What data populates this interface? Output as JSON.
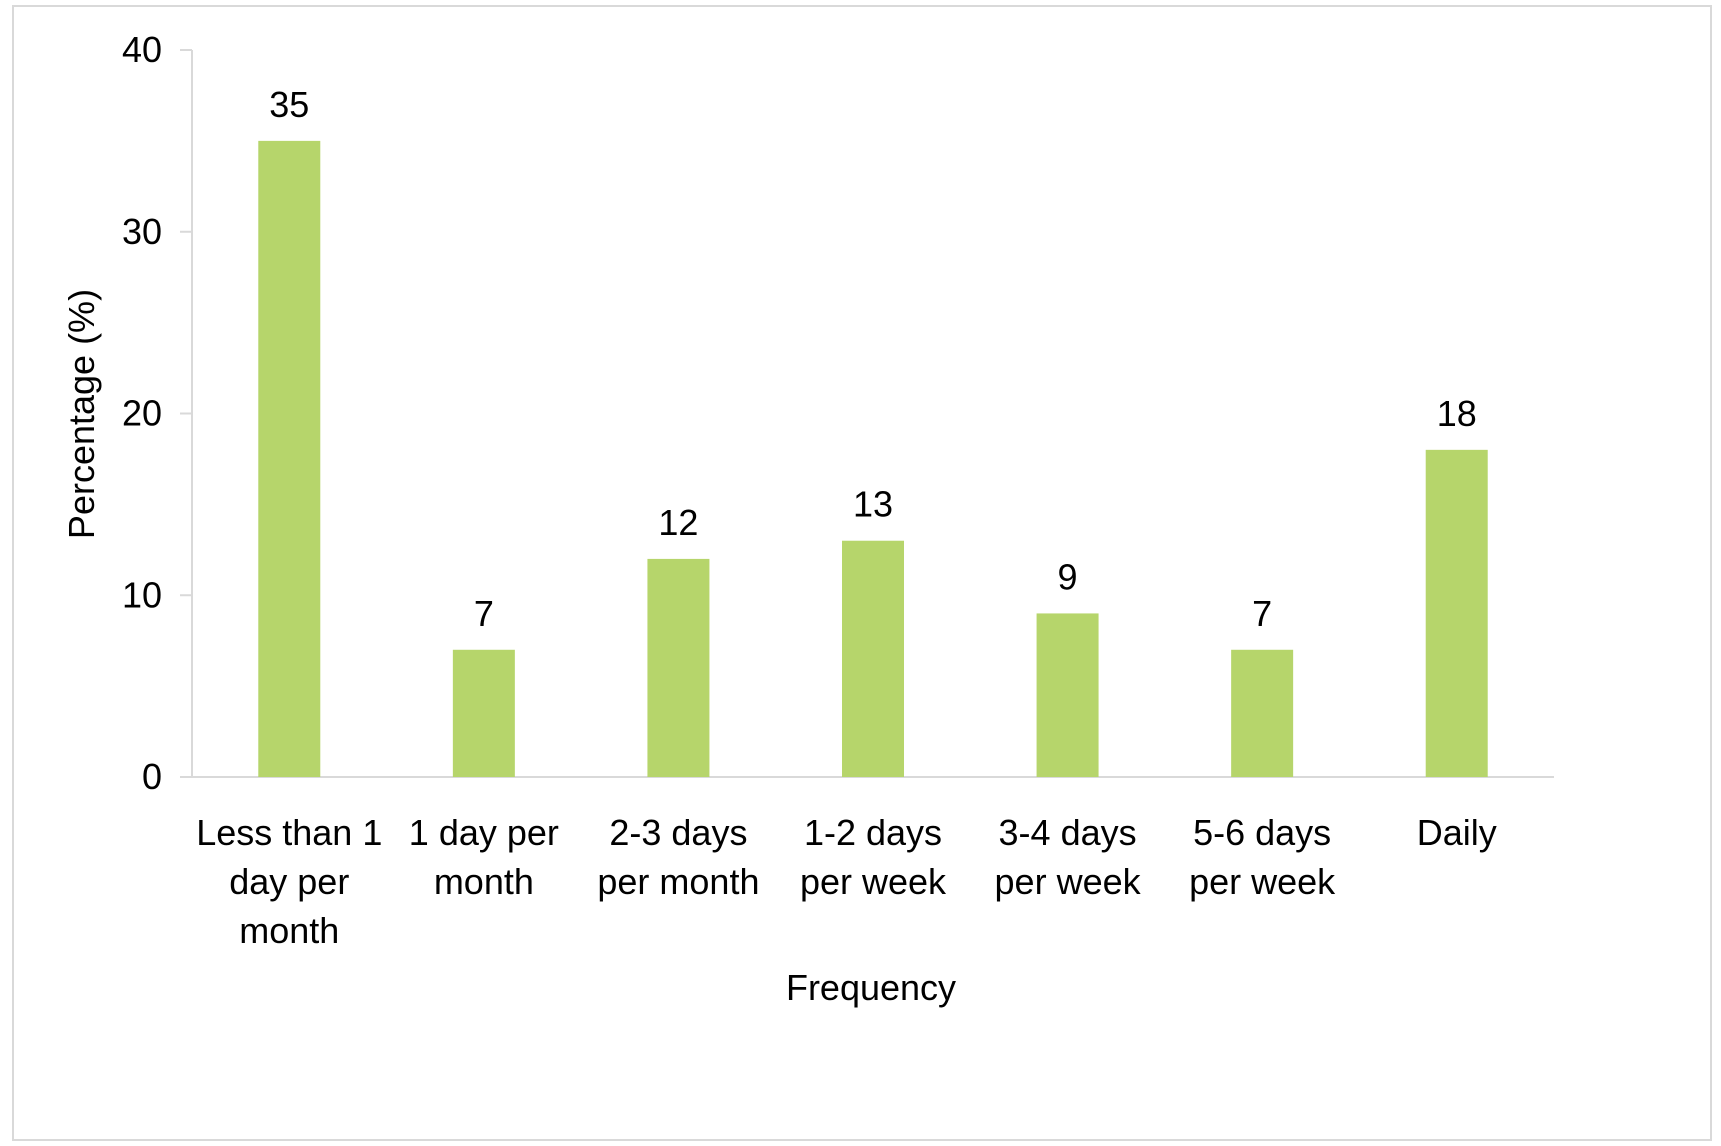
{
  "chart_data": {
    "type": "bar",
    "title": "",
    "xlabel": "Frequency",
    "ylabel": "Percentage (%)",
    "ylim": [
      0,
      40
    ],
    "yticks": [
      0,
      10,
      20,
      30,
      40
    ],
    "grid": false,
    "bar_color": "#b6d56b",
    "categories": [
      "Less than 1 day per month",
      "1 day per month",
      "2-3 days per month",
      "1-2 days per week",
      "3-4 days per week",
      "5-6 days per week",
      "Daily"
    ],
    "category_lines": [
      [
        "Less than 1",
        "day per",
        "month"
      ],
      [
        "1 day per",
        "month"
      ],
      [
        "2-3 days",
        "per month"
      ],
      [
        "1-2 days",
        "per week"
      ],
      [
        "3-4 days",
        "per week"
      ],
      [
        "5-6 days",
        "per week"
      ],
      [
        "Daily"
      ]
    ],
    "values": [
      35,
      7,
      12,
      13,
      9,
      7,
      18
    ],
    "data_labels": [
      "35",
      "7",
      "12",
      "13",
      "9",
      "7",
      "18"
    ]
  }
}
